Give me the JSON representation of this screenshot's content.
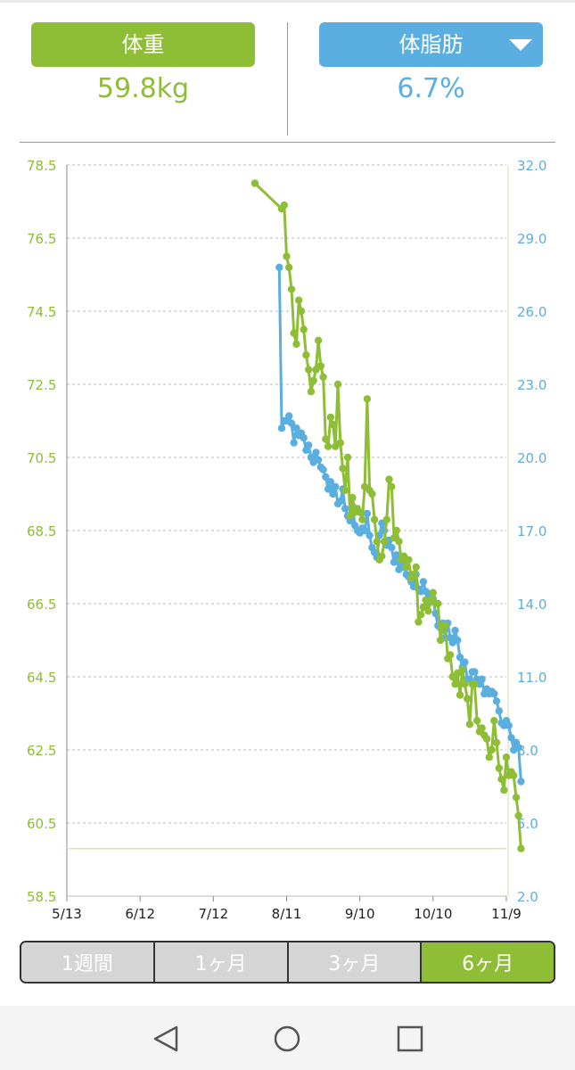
{
  "header": {
    "weight": {
      "label": "体重",
      "value": "59.8kg"
    },
    "body_fat": {
      "label": "体脂肪",
      "value": "6.7%"
    }
  },
  "colors": {
    "weight": "#8ebd36",
    "body_fat": "#5aaee0",
    "grid": "#bbbbbb",
    "axis": "#888888"
  },
  "range_tabs": [
    {
      "label": "1週間",
      "active": false
    },
    {
      "label": "1ヶ月",
      "active": false
    },
    {
      "label": "3ヶ月",
      "active": false
    },
    {
      "label": "6ヶ月",
      "active": true
    }
  ],
  "nav": {
    "icons": [
      "back-icon",
      "home-icon",
      "recents-icon"
    ]
  },
  "chart_data": {
    "type": "line",
    "x_axis": {
      "range": [
        "5/13",
        "11/9"
      ],
      "tick_labels": [
        "5/13",
        "6/12",
        "7/12",
        "8/11",
        "9/10",
        "10/10",
        "11/9"
      ]
    },
    "y_left": {
      "range": [
        58.5,
        78.5
      ],
      "tick_labels": [
        "78.5",
        "76.5",
        "74.5",
        "72.5",
        "70.5",
        "68.5",
        "66.5",
        "64.5",
        "62.5",
        "60.5",
        "58.5"
      ]
    },
    "y_right": {
      "range": [
        2.0,
        32.0
      ],
      "tick_labels": [
        "32.0",
        "29.0",
        "26.0",
        "23.0",
        "20.0",
        "17.0",
        "14.0",
        "11.0",
        "8.0",
        "5.0",
        "2.0"
      ]
    },
    "reference_line": {
      "axis": "left",
      "value": 59.8
    },
    "grid": true,
    "series": [
      {
        "axis": "left",
        "color": "#8ebd36",
        "points": [
          [
            "7/29",
            78.0
          ],
          [
            "8/9",
            77.3
          ],
          [
            "8/10",
            77.4
          ],
          [
            "8/11",
            76.0
          ],
          [
            "8/12",
            75.7
          ],
          [
            "8/13",
            75.1
          ],
          [
            "8/14",
            73.9
          ],
          [
            "8/15",
            73.6
          ],
          [
            "8/16",
            74.8
          ],
          [
            "8/17",
            74.5
          ],
          [
            "8/18",
            74.0
          ],
          [
            "8/19",
            73.3
          ],
          [
            "8/20",
            72.9
          ],
          [
            "8/21",
            72.3
          ],
          [
            "8/22",
            72.6
          ],
          [
            "8/23",
            72.9
          ],
          [
            "8/24",
            73.7
          ],
          [
            "8/25",
            73.0
          ],
          [
            "8/26",
            72.7
          ],
          [
            "8/27",
            71.0
          ],
          [
            "8/28",
            70.8
          ],
          [
            "8/29",
            71.6
          ],
          [
            "8/30",
            71.4
          ],
          [
            "8/31",
            70.8
          ],
          [
            "9/1",
            72.5
          ],
          [
            "9/2",
            70.9
          ],
          [
            "9/3",
            70.2
          ],
          [
            "9/4",
            69.6
          ],
          [
            "9/5",
            70.5
          ],
          [
            "9/6",
            68.9
          ],
          [
            "9/7",
            69.4
          ],
          [
            "9/8",
            69.0
          ],
          [
            "9/9",
            69.1
          ],
          [
            "9/10",
            69.0
          ],
          [
            "9/11",
            68.8
          ],
          [
            "9/12",
            69.7
          ],
          [
            "9/13",
            72.1
          ],
          [
            "9/14",
            69.6
          ],
          [
            "9/15",
            69.5
          ],
          [
            "9/16",
            68.8
          ],
          [
            "9/17",
            68.2
          ],
          [
            "9/18",
            67.7
          ],
          [
            "9/19",
            67.8
          ],
          [
            "9/20",
            68.2
          ],
          [
            "9/21",
            68.8
          ],
          [
            "9/22",
            69.9
          ],
          [
            "9/23",
            69.7
          ],
          [
            "9/24",
            68.3
          ],
          [
            "9/25",
            68.5
          ],
          [
            "9/26",
            68.2
          ],
          [
            "9/27",
            67.7
          ],
          [
            "9/28",
            67.8
          ],
          [
            "9/29",
            67.5
          ],
          [
            "9/30",
            67.7
          ],
          [
            "10/1",
            67.2
          ],
          [
            "10/2",
            67.3
          ],
          [
            "10/3",
            67.5
          ],
          [
            "10/4",
            66.0
          ],
          [
            "10/5",
            66.2
          ],
          [
            "10/6",
            66.4
          ],
          [
            "10/7",
            66.6
          ],
          [
            "10/8",
            66.3
          ],
          [
            "10/9",
            66.6
          ],
          [
            "10/10",
            66.8
          ],
          [
            "10/11",
            66.5
          ],
          [
            "10/12",
            66.5
          ],
          [
            "10/13",
            65.5
          ],
          [
            "10/14",
            65.9
          ],
          [
            "10/15",
            65.9
          ],
          [
            "10/16",
            65.0
          ],
          [
            "10/17",
            65.1
          ],
          [
            "10/18",
            64.5
          ],
          [
            "10/19",
            64.3
          ],
          [
            "10/20",
            64.6
          ],
          [
            "10/21",
            64.0
          ],
          [
            "10/22",
            64.7
          ],
          [
            "10/23",
            64.3
          ],
          [
            "10/24",
            63.9
          ],
          [
            "10/25",
            63.2
          ],
          [
            "10/26",
            64.3
          ],
          [
            "10/27",
            64.3
          ],
          [
            "10/28",
            63.3
          ],
          [
            "10/29",
            63.0
          ],
          [
            "10/30",
            63.1
          ],
          [
            "10/31",
            62.9
          ],
          [
            "11/1",
            62.8
          ],
          [
            "11/2",
            62.3
          ],
          [
            "11/3",
            62.5
          ],
          [
            "11/4",
            63.3
          ],
          [
            "11/5",
            62.7
          ],
          [
            "11/6",
            62.0
          ],
          [
            "11/7",
            61.7
          ],
          [
            "11/8",
            61.4
          ],
          [
            "11/9",
            62.3
          ],
          [
            "11/10",
            61.8
          ],
          [
            "11/11",
            61.9
          ],
          [
            "11/12",
            61.8
          ],
          [
            "11/13",
            61.2
          ],
          [
            "11/14",
            60.7
          ],
          [
            "11/15",
            59.8
          ]
        ]
      },
      {
        "axis": "right",
        "color": "#5aaee0",
        "points": [
          [
            "8/8",
            27.8
          ],
          [
            "8/9",
            21.2
          ],
          [
            "8/10",
            21.5
          ],
          [
            "8/11",
            21.5
          ],
          [
            "8/12",
            21.7
          ],
          [
            "8/13",
            21.4
          ],
          [
            "8/14",
            20.6
          ],
          [
            "8/15",
            21.2
          ],
          [
            "8/16",
            20.9
          ],
          [
            "8/17",
            21.0
          ],
          [
            "8/18",
            20.8
          ],
          [
            "8/19",
            20.3
          ],
          [
            "8/20",
            20.5
          ],
          [
            "8/21",
            20.0
          ],
          [
            "8/22",
            19.8
          ],
          [
            "8/23",
            20.2
          ],
          [
            "8/24",
            19.9
          ],
          [
            "8/25",
            19.6
          ],
          [
            "8/26",
            19.5
          ],
          [
            "8/27",
            19.2
          ],
          [
            "8/28",
            18.7
          ],
          [
            "8/29",
            19.0
          ],
          [
            "8/30",
            18.5
          ],
          [
            "8/31",
            18.8
          ],
          [
            "9/1",
            18.1
          ],
          [
            "9/2",
            18.2
          ],
          [
            "9/3",
            18.7
          ],
          [
            "9/4",
            17.9
          ],
          [
            "9/5",
            17.6
          ],
          [
            "9/6",
            17.4
          ],
          [
            "9/7",
            18.0
          ],
          [
            "9/8",
            17.2
          ],
          [
            "9/9",
            17.0
          ],
          [
            "9/10",
            16.9
          ],
          [
            "9/11",
            17.1
          ],
          [
            "9/12",
            17.0
          ],
          [
            "9/13",
            17.7
          ],
          [
            "9/14",
            16.8
          ],
          [
            "9/15",
            16.3
          ],
          [
            "9/16",
            16.1
          ],
          [
            "9/17",
            15.9
          ],
          [
            "9/18",
            16.8
          ],
          [
            "9/19",
            17.3
          ],
          [
            "9/20",
            17.0
          ],
          [
            "9/21",
            16.4
          ],
          [
            "9/22",
            16.6
          ],
          [
            "9/23",
            16.3
          ],
          [
            "9/24",
            15.7
          ],
          [
            "9/25",
            16.0
          ],
          [
            "9/26",
            15.4
          ],
          [
            "9/27",
            15.7
          ],
          [
            "9/28",
            15.5
          ],
          [
            "9/29",
            15.2
          ],
          [
            "9/30",
            15.1
          ],
          [
            "10/1",
            14.9
          ],
          [
            "10/2",
            14.7
          ],
          [
            "10/3",
            15.2
          ],
          [
            "10/4",
            14.6
          ],
          [
            "10/5",
            14.5
          ],
          [
            "10/6",
            14.9
          ],
          [
            "10/7",
            14.5
          ],
          [
            "10/8",
            14.0
          ],
          [
            "10/9",
            14.4
          ],
          [
            "10/10",
            14.2
          ],
          [
            "10/11",
            13.6
          ],
          [
            "10/12",
            13.1
          ],
          [
            "10/13",
            13.0
          ],
          [
            "10/14",
            13.2
          ],
          [
            "10/15",
            12.6
          ],
          [
            "10/16",
            13.2
          ],
          [
            "10/17",
            12.6
          ],
          [
            "10/18",
            12.4
          ],
          [
            "10/19",
            12.9
          ],
          [
            "10/20",
            12.5
          ],
          [
            "10/21",
            11.8
          ],
          [
            "10/22",
            11.4
          ],
          [
            "10/23",
            11.6
          ],
          [
            "10/24",
            10.9
          ],
          [
            "10/25",
            10.9
          ],
          [
            "10/26",
            11.2
          ],
          [
            "10/27",
            11.2
          ],
          [
            "10/28",
            10.9
          ],
          [
            "10/29",
            10.7
          ],
          [
            "10/30",
            10.9
          ],
          [
            "10/31",
            10.3
          ],
          [
            "11/1",
            10.5
          ],
          [
            "11/2",
            10.3
          ],
          [
            "11/3",
            10.4
          ],
          [
            "11/4",
            10.3
          ],
          [
            "11/5",
            10.0
          ],
          [
            "11/6",
            9.6
          ],
          [
            "11/7",
            9.1
          ],
          [
            "11/8",
            9.0
          ],
          [
            "11/9",
            9.2
          ],
          [
            "11/10",
            9.0
          ],
          [
            "11/11",
            8.5
          ],
          [
            "11/12",
            8.0
          ],
          [
            "11/13",
            8.3
          ],
          [
            "11/14",
            8.1
          ],
          [
            "11/15",
            6.7
          ]
        ]
      }
    ]
  }
}
